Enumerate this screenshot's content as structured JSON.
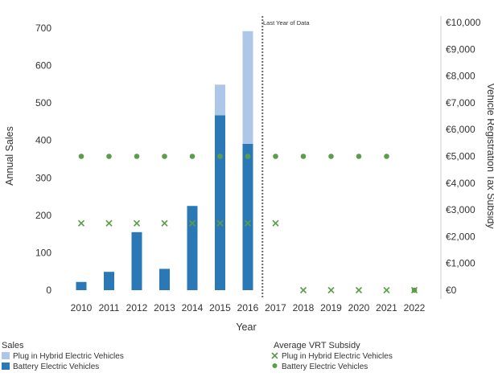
{
  "chart_data": {
    "type": "bar",
    "categories": [
      "2010",
      "2011",
      "2012",
      "2013",
      "2014",
      "2015",
      "2016",
      "2017",
      "2018",
      "2019",
      "2020",
      "2021",
      "2022"
    ],
    "series": [
      {
        "name": "Battery Electric Vehicles",
        "kind": "bar",
        "axis": "left",
        "values": [
          22,
          49,
          155,
          57,
          225,
          467,
          391,
          null,
          null,
          null,
          null,
          null,
          null
        ],
        "color": "#2b78b6"
      },
      {
        "name": "Plug in Hybrid Electric Vehicles",
        "kind": "bar",
        "axis": "left",
        "values": [
          0,
          0,
          0,
          0,
          0,
          82,
          301,
          null,
          null,
          null,
          null,
          null,
          null
        ],
        "color": "#aec7e8"
      },
      {
        "name": "Plug in Hybrid Electric Vehicles",
        "kind": "marker-x",
        "axis": "right",
        "values": [
          2500,
          2500,
          2500,
          2500,
          2500,
          2500,
          2500,
          2500,
          0,
          0,
          0,
          0,
          0
        ],
        "color": "#5a9e4b"
      },
      {
        "name": "Battery Electric Vehicles",
        "kind": "marker-dot",
        "axis": "right",
        "values": [
          5000,
          5000,
          5000,
          5000,
          5000,
          5000,
          5000,
          5000,
          5000,
          5000,
          5000,
          5000,
          0
        ],
        "color": "#5a9e4b"
      }
    ],
    "xlabel": "Year",
    "ylabel": "Annual Sales",
    "y2label": "Vehicle Registration Tax Subsidy",
    "ylim": [
      0,
      700
    ],
    "y2lim": [
      0,
      10000
    ],
    "yticks": [
      0,
      100,
      200,
      300,
      400,
      500,
      600,
      700
    ],
    "y2ticks": [
      "€0",
      "€1,000",
      "€2,000",
      "€3,000",
      "€4,000",
      "€5,000",
      "€6,000",
      "€7,000",
      "€8,000",
      "€9,000",
      "€10,000"
    ],
    "annotation": {
      "text": "Last Year of Data",
      "after_category": "2016"
    },
    "legend": {
      "placement": "bottom",
      "sales_title": "Sales",
      "vrt_title": "Average VRT Subsidy"
    },
    "grid": false
  }
}
